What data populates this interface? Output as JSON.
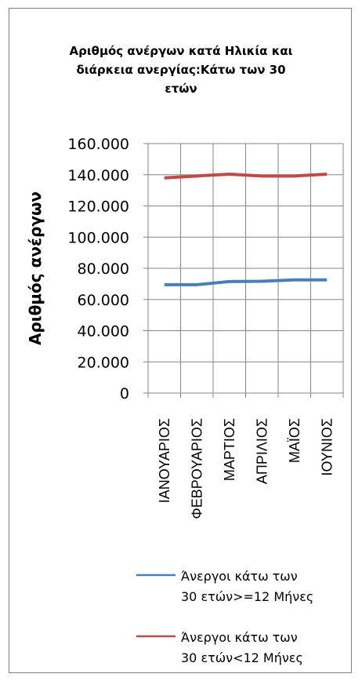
{
  "chart_data": {
    "type": "line",
    "title_lines": [
      "Αριθμός ανέργων κατά Ηλικία και",
      "διάρκεια ανεργίας:Κάτω των 30",
      "ετών"
    ],
    "xlabel": "",
    "ylabel": "Αριθμός ανέργων",
    "categories": [
      "ΙΑΝΟΥΑΡΙΟΣ",
      "ΦΕΒΡΟΥΑΡΙΟΣ",
      "ΜΑΡΤΙΟΣ",
      "ΑΠΡΙΛΙΟΣ",
      "ΜΑΪΟΣ",
      "ΙΟΥΝΙΟΣ"
    ],
    "ylim": [
      0,
      160000
    ],
    "yticks": [
      0,
      20000,
      40000,
      60000,
      80000,
      100000,
      120000,
      140000,
      160000
    ],
    "ytick_labels": [
      "0",
      "20.000",
      "40.000",
      "60.000",
      "80.000",
      "100.000",
      "120.000",
      "140.000",
      "160.000"
    ],
    "grid": true,
    "legend_position": "bottom",
    "series": [
      {
        "name_lines": [
          "Άνεργοι κάτω των",
          "30 ετών>=12 Μήνες"
        ],
        "color": "#4a7ebb",
        "values": [
          69500,
          69500,
          71500,
          71700,
          72600,
          72600
        ]
      },
      {
        "name_lines": [
          "Άνεργοι κάτω των",
          "30 ετών<12 Μήνες"
        ],
        "color": "#be4b48",
        "values": [
          138000,
          139200,
          140400,
          139200,
          139200,
          140400
        ]
      }
    ]
  }
}
